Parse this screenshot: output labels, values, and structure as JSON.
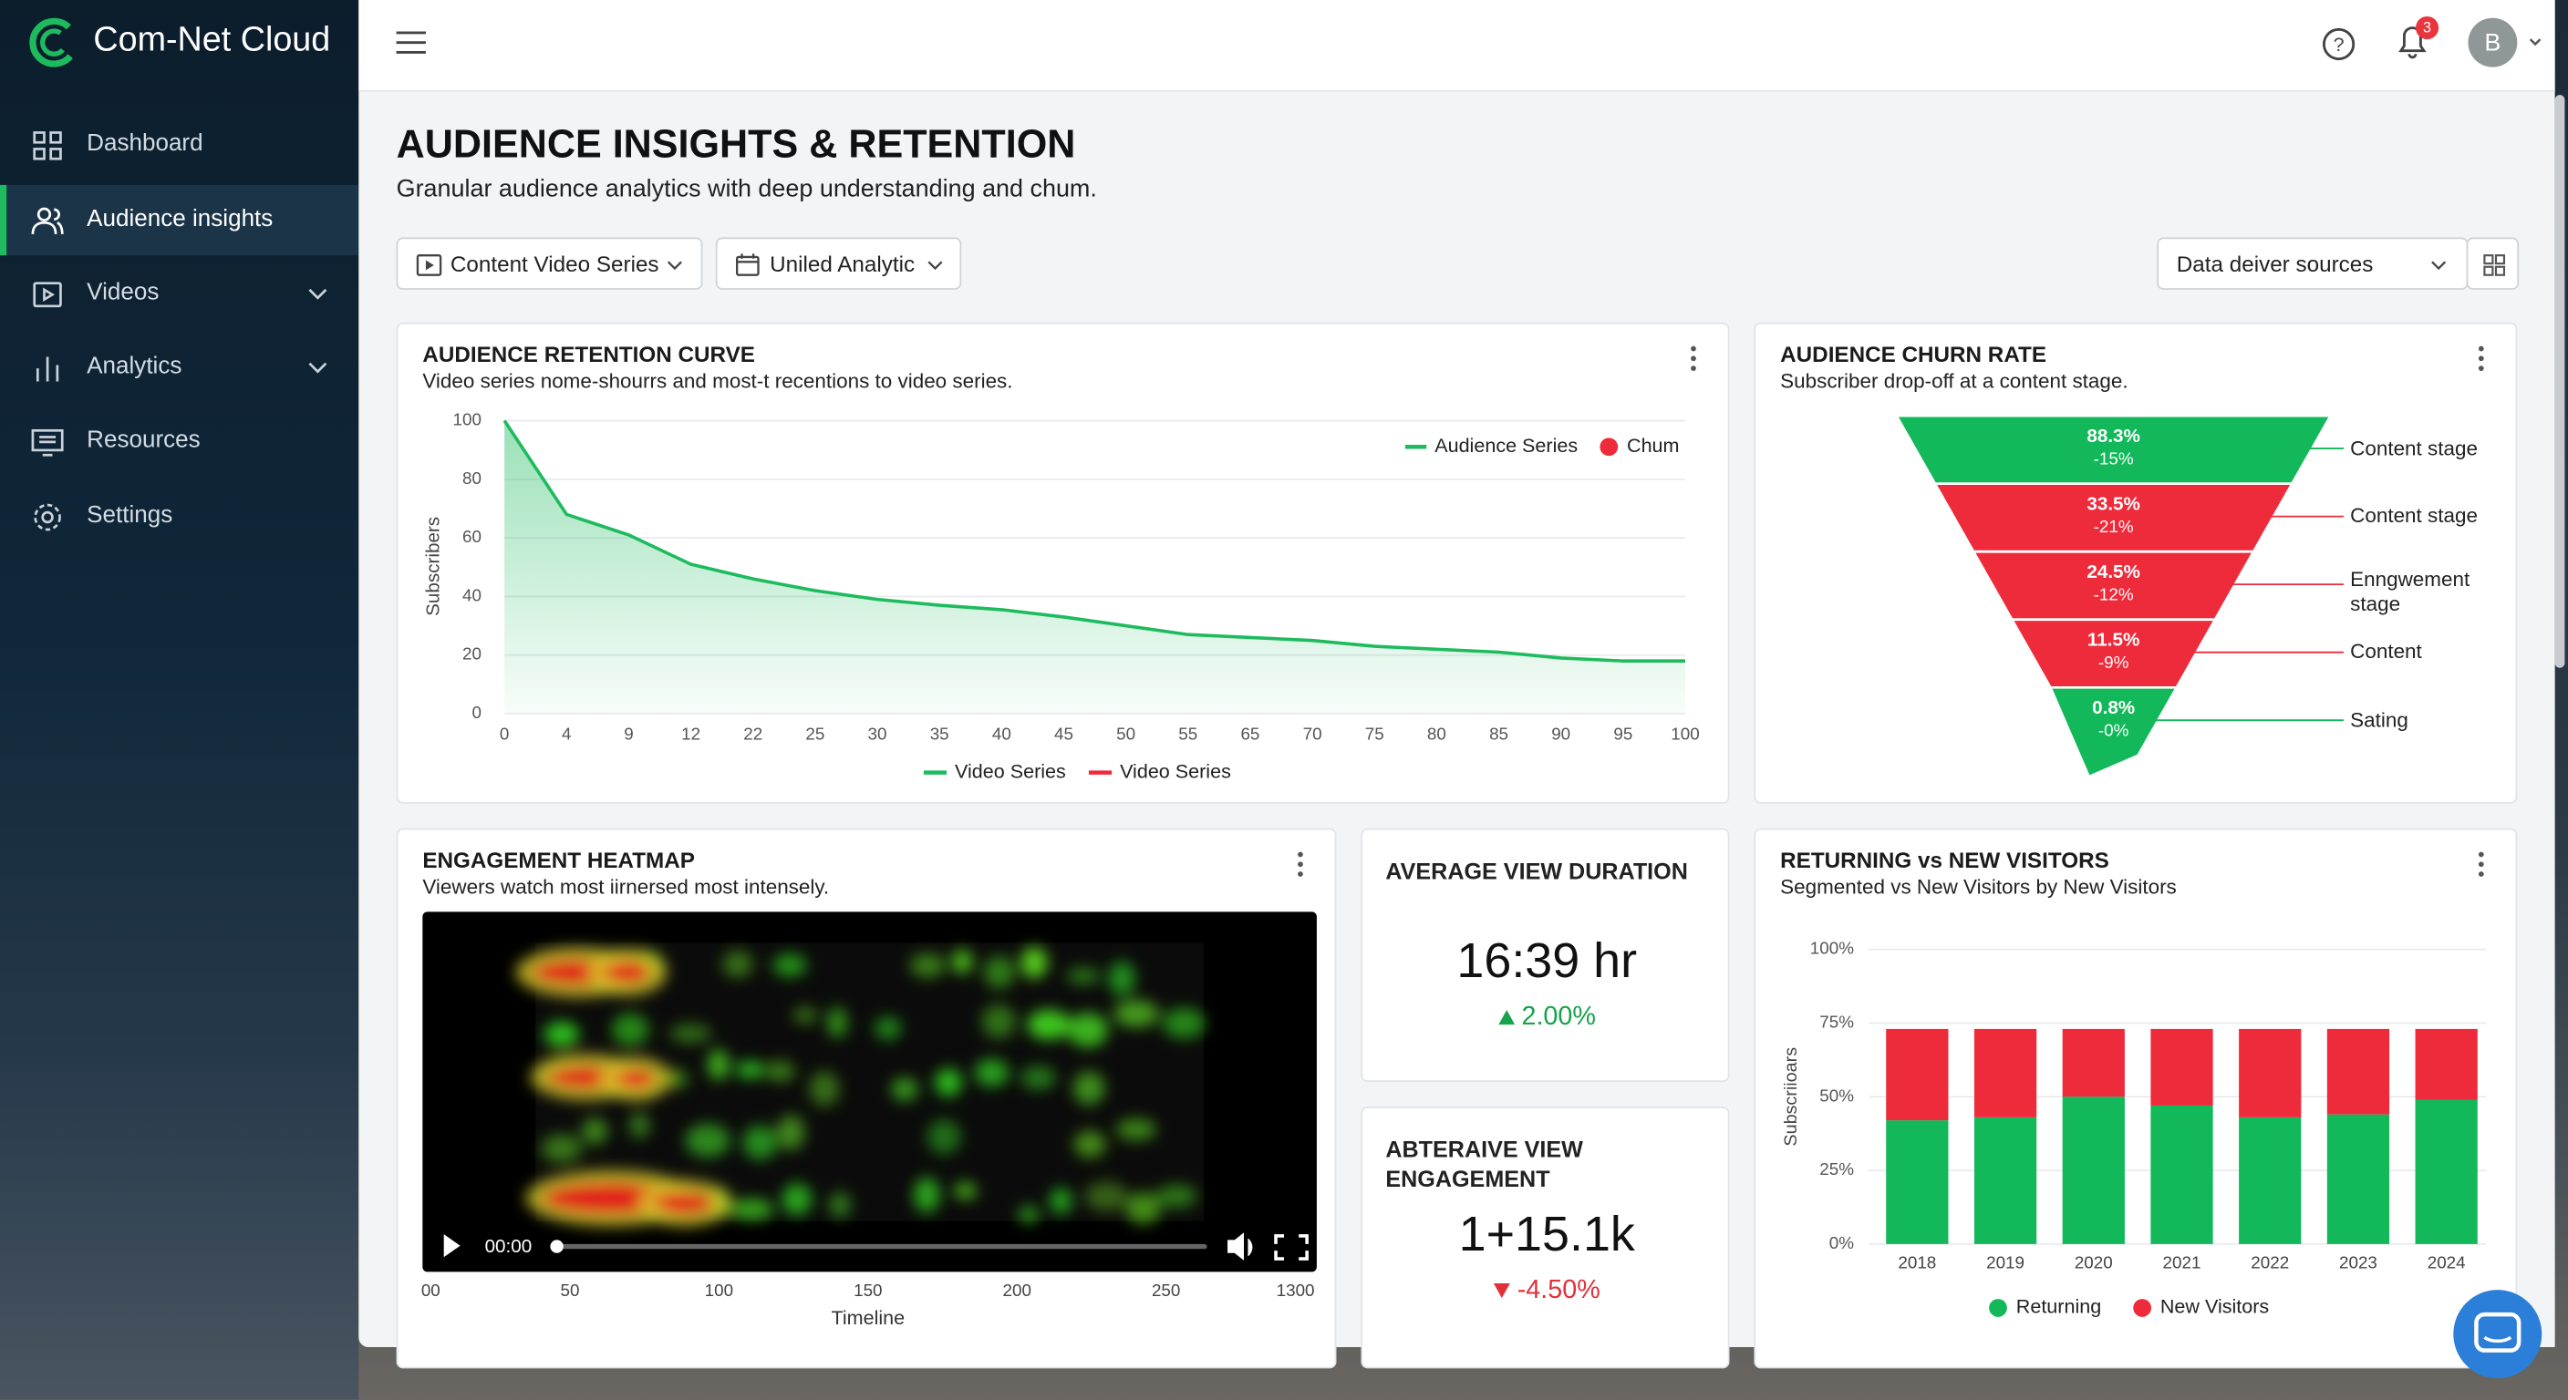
{
  "app": {
    "name": "Com-Net Cloud",
    "notifications": 3,
    "avatar": "B"
  },
  "nav": [
    "Dashboard",
    "Audience insights",
    "Videos",
    "Analytics",
    "Resources",
    "Settings"
  ],
  "page": {
    "title": "AUDIENCE INSIGHTS & RETENTION",
    "subtitle": "Granular audience analytics with deep understanding and chum.",
    "filters": [
      "Content Video Series",
      "Uniled Analytic"
    ],
    "source_select": "Data deiver sources"
  },
  "chart_data": [
    {
      "type": "line",
      "title": "AUDIENCE RETENTION CURVE",
      "subtitle": "Video series nome-shourrs and most-t recentions to video series.",
      "ylabel": "Subscribers",
      "categories": [
        "0",
        "4",
        "9",
        "12",
        "22",
        "25",
        "30",
        "35",
        "40",
        "45",
        "50",
        "55",
        "65",
        "70",
        "75",
        "80",
        "85",
        "90",
        "95",
        "100"
      ],
      "series": [
        {
          "name": "Audience Series",
          "color": "#1dbb5e",
          "values": [
            100,
            68,
            61,
            51,
            46,
            42,
            39,
            37,
            35.5,
            33,
            30,
            27,
            26,
            25,
            23,
            22,
            21,
            19,
            18,
            18
          ]
        }
      ],
      "extra_legend": [
        {
          "name": "Chum",
          "color": "#ee2b3b"
        }
      ],
      "bottom_legend": [
        {
          "name": "Video Series",
          "color": "#1dbb5e"
        },
        {
          "name": "Video Series",
          "color": "#ee2b3b"
        }
      ],
      "ylim": [
        0,
        100
      ],
      "yticks": [
        0,
        20,
        40,
        60,
        80,
        100
      ],
      "grid": true
    },
    {
      "type": "funnel",
      "title": "AUDIENCE CHURN RATE",
      "subtitle": "Subscriber drop-off at a content stage.",
      "categories": [
        "Content stage",
        "Content stage",
        "Enngwement stage",
        "Content",
        "Sating"
      ],
      "values": [
        88.3,
        33.5,
        24.5,
        11.5,
        0.8
      ],
      "value_labels": [
        "88.3%",
        "33.5%",
        "24.5%",
        "11.5%",
        "0.8%"
      ],
      "changes": [
        -15,
        -21,
        -12,
        -9,
        0
      ],
      "change_labels": [
        "-15%",
        "-21%",
        "-12%",
        "-9%",
        "-0%"
      ],
      "colors": [
        "#12b85a",
        "#ee2b3b",
        "#ee2b3b",
        "#ee2b3b",
        "#12b85a"
      ]
    },
    {
      "type": "bar",
      "stacked": true,
      "title": "RETURNING vs NEW VISITORS",
      "subtitle": "Segmented vs New Visitors by New Visitors",
      "ylabel": "Subscriioars",
      "categories": [
        "2018",
        "2019",
        "2020",
        "2021",
        "2022",
        "2023",
        "2024"
      ],
      "series": [
        {
          "name": "Returning",
          "color": "#12b85a",
          "values": [
            42,
            43,
            50,
            47,
            43,
            44,
            49
          ]
        },
        {
          "name": "New Visitors",
          "color": "#ee2b3b",
          "values": [
            31,
            30,
            23,
            26,
            30,
            29,
            24
          ]
        }
      ],
      "ylim": [
        0,
        100
      ],
      "yticks": [
        {
          "value": 0,
          "label": "0%"
        },
        {
          "value": 25,
          "label": "25%"
        },
        {
          "value": 50,
          "label": "50%"
        },
        {
          "value": 75,
          "label": "75%"
        },
        {
          "value": 100,
          "label": "100%"
        }
      ],
      "grid": true
    }
  ],
  "heatmap": {
    "title": "ENGAGEMENT HEATMAP",
    "subtitle": "Viewers watch most iirnersed most intensely.",
    "time": "00:00",
    "axis_ticks": [
      "00",
      "50",
      "100",
      "150",
      "200",
      "250",
      "1300"
    ],
    "axis_label": "Timeline"
  },
  "kpis": [
    {
      "title": "AVERAGE VIEW DURATION",
      "value": "16:39 hr",
      "change": "2.00%",
      "direction": "up"
    },
    {
      "title": "ABTERAIVE VIEW ENGAGEMENT",
      "value": "1+15.1k",
      "change": "-4.50%",
      "direction": "down"
    }
  ]
}
